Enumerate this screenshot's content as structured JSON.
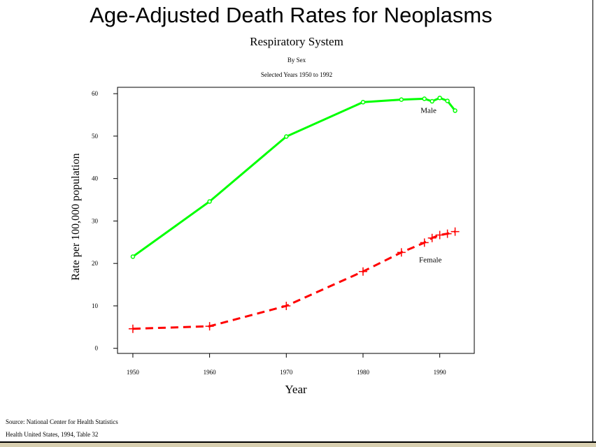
{
  "chart_data": {
    "type": "line",
    "title": "Age-Adjusted Death Rates for Neoplasms",
    "subtitle": "Respiratory System",
    "subtitle2": "By Sex",
    "subtitle3": "Selected Years 1950 to 1992",
    "xlabel": "Year",
    "ylabel": "Rate per 100,000 population",
    "xlim": [
      1948,
      1994.5
    ],
    "ylim": [
      -1.2,
      61.5
    ],
    "xticks": [
      1950,
      1960,
      1970,
      1980,
      1990
    ],
    "yticks": [
      0,
      10,
      20,
      30,
      40,
      50,
      60
    ],
    "grid": false,
    "series": [
      {
        "name": "Male",
        "color": "#00ff00",
        "marker": "circle",
        "style": "solid",
        "x": [
          1950,
          1960,
          1970,
          1980,
          1985,
          1988,
          1989,
          1990,
          1991,
          1992
        ],
        "y": [
          21.6,
          34.6,
          49.9,
          58.0,
          58.6,
          58.8,
          58.2,
          59.0,
          58.3,
          56.0
        ],
        "label_pos": [
          1987.5,
          55.5
        ]
      },
      {
        "name": "Female",
        "color": "#ff0000",
        "marker": "plus",
        "style": "dashed",
        "x": [
          1950,
          1960,
          1970,
          1980,
          1985,
          1988,
          1989,
          1990,
          1991,
          1992
        ],
        "y": [
          4.6,
          5.2,
          10.0,
          18.1,
          22.6,
          24.9,
          26.0,
          26.7,
          27.0,
          27.5
        ],
        "label_pos": [
          1987.3,
          20.3
        ]
      }
    ]
  },
  "source": {
    "line1": "Source: National Center for Health Statistics",
    "line2": "Health United States, 1994, Table 32"
  }
}
